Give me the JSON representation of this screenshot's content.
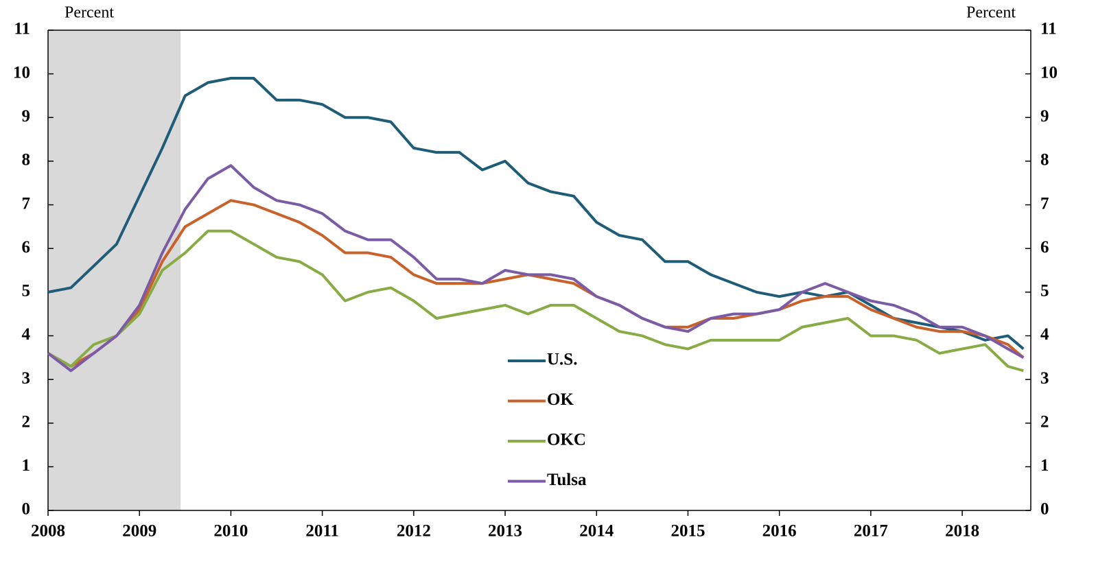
{
  "chart_data": {
    "type": "line",
    "y_label_left": "Percent",
    "y_label_right": "Percent",
    "x": [
      2008,
      2008.25,
      2008.5,
      2008.75,
      2009,
      2009.25,
      2009.5,
      2009.75,
      2010,
      2010.25,
      2010.5,
      2010.75,
      2011,
      2011.25,
      2011.5,
      2011.75,
      2012,
      2012.25,
      2012.5,
      2012.75,
      2013,
      2013.25,
      2013.5,
      2013.75,
      2014,
      2014.25,
      2014.5,
      2014.75,
      2015,
      2015.25,
      2015.5,
      2015.75,
      2016,
      2016.25,
      2016.5,
      2016.75,
      2017,
      2017.25,
      2017.5,
      2017.75,
      2018,
      2018.25,
      2018.5,
      2018.67
    ],
    "series": [
      {
        "name": "U.S.",
        "color": "#1f5c78",
        "values": [
          5.0,
          5.1,
          5.6,
          6.1,
          7.2,
          8.3,
          9.5,
          9.8,
          9.9,
          9.9,
          9.4,
          9.4,
          9.3,
          9.0,
          9.0,
          8.9,
          8.3,
          8.2,
          8.2,
          7.8,
          8.0,
          7.5,
          7.3,
          7.2,
          6.6,
          6.3,
          6.2,
          5.7,
          5.7,
          5.4,
          5.2,
          5.0,
          4.9,
          5.0,
          4.9,
          5.0,
          4.7,
          4.4,
          4.3,
          4.2,
          4.1,
          3.9,
          4.0,
          3.7
        ]
      },
      {
        "name": "OK",
        "color": "#c8622a",
        "values": [
          3.6,
          3.3,
          3.6,
          4.0,
          4.6,
          5.7,
          6.5,
          6.8,
          7.1,
          7.0,
          6.8,
          6.6,
          6.3,
          5.9,
          5.9,
          5.8,
          5.4,
          5.2,
          5.2,
          5.2,
          5.3,
          5.4,
          5.3,
          5.2,
          4.9,
          4.7,
          4.4,
          4.2,
          4.2,
          4.4,
          4.4,
          4.5,
          4.6,
          4.8,
          4.9,
          4.9,
          4.6,
          4.4,
          4.2,
          4.1,
          4.1,
          4.0,
          3.8,
          3.5
        ]
      },
      {
        "name": "OKC",
        "color": "#88ab45",
        "values": [
          3.6,
          3.3,
          3.8,
          4.0,
          4.5,
          5.5,
          5.9,
          6.4,
          6.4,
          6.1,
          5.8,
          5.7,
          5.4,
          4.8,
          5.0,
          5.1,
          4.8,
          4.4,
          4.5,
          4.6,
          4.7,
          4.5,
          4.7,
          4.7,
          4.4,
          4.1,
          4.0,
          3.8,
          3.7,
          3.9,
          3.9,
          3.9,
          3.9,
          4.2,
          4.3,
          4.4,
          4.0,
          4.0,
          3.9,
          3.6,
          3.7,
          3.8,
          3.3,
          3.2
        ]
      },
      {
        "name": "Tulsa",
        "color": "#7b5ba6",
        "values": [
          3.6,
          3.2,
          3.6,
          4.0,
          4.7,
          5.9,
          6.9,
          7.6,
          7.9,
          7.4,
          7.1,
          7.0,
          6.8,
          6.4,
          6.2,
          6.2,
          5.8,
          5.3,
          5.3,
          5.2,
          5.5,
          5.4,
          5.4,
          5.3,
          4.9,
          4.7,
          4.4,
          4.2,
          4.1,
          4.4,
          4.5,
          4.5,
          4.6,
          5.0,
          5.2,
          5.0,
          4.8,
          4.7,
          4.5,
          4.2,
          4.2,
          4.0,
          3.7,
          3.5
        ]
      }
    ],
    "shaded_span": [
      2008,
      2009.45
    ],
    "shade_color": "#d9d9d9",
    "xlim": [
      2008,
      2018.75
    ],
    "xticks": [
      2008,
      2009,
      2010,
      2011,
      2012,
      2013,
      2014,
      2015,
      2016,
      2017,
      2018
    ],
    "ylim": [
      0,
      11
    ],
    "yticks": [
      0,
      1,
      2,
      3,
      4,
      5,
      6,
      7,
      8,
      9,
      10,
      11
    ],
    "y2lim": [
      0,
      11
    ],
    "y2ticks": [
      0,
      1,
      2,
      3,
      4,
      5,
      6,
      7,
      8,
      9,
      10,
      11
    ],
    "grid": false
  }
}
